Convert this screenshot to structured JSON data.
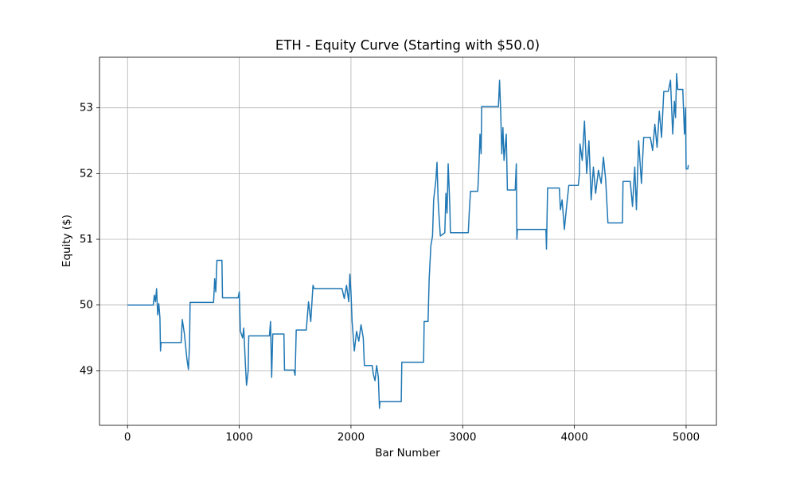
{
  "chart_data": {
    "type": "line",
    "title": "ETH - Equity Curve (Starting with $50.0)",
    "x_label": "Bar Number",
    "y_label": "Equity ($)",
    "color": "#1f77b4",
    "grid": true,
    "xlim": [
      -251,
      5271
    ],
    "ylim": [
      48.17,
      53.77
    ],
    "xticks": [
      0,
      1000,
      2000,
      3000,
      4000,
      5000
    ],
    "yticks": [
      49,
      50,
      51,
      52,
      53
    ],
    "x": [
      0,
      230,
      240,
      250,
      260,
      270,
      280,
      290,
      295,
      300,
      480,
      490,
      510,
      530,
      545,
      555,
      560,
      770,
      780,
      790,
      800,
      845,
      850,
      990,
      1000,
      1010,
      1030,
      1040,
      1055,
      1065,
      1080,
      1085,
      1270,
      1280,
      1290,
      1300,
      1400,
      1405,
      1490,
      1500,
      1510,
      1600,
      1620,
      1640,
      1660,
      1670,
      1920,
      1940,
      1960,
      1980,
      1990,
      2000,
      2010,
      2030,
      2050,
      2070,
      2090,
      2110,
      2120,
      2190,
      2200,
      2215,
      2230,
      2245,
      2255,
      2260,
      2450,
      2455,
      2650,
      2655,
      2690,
      2700,
      2715,
      2730,
      2740,
      2760,
      2770,
      2780,
      2790,
      2800,
      2840,
      2850,
      2860,
      2870,
      2885,
      2890,
      3050,
      3060,
      3070,
      3135,
      3145,
      3155,
      3165,
      3170,
      3320,
      3330,
      3340,
      3350,
      3360,
      3370,
      3390,
      3400,
      3470,
      3480,
      3485,
      3490,
      3745,
      3750,
      3760,
      3865,
      3875,
      3890,
      3910,
      3930,
      3950,
      4035,
      4045,
      4050,
      4070,
      4090,
      4110,
      4130,
      4150,
      4170,
      4190,
      4215,
      4240,
      4260,
      4280,
      4300,
      4430,
      4435,
      4500,
      4520,
      4540,
      4555,
      4575,
      4600,
      4620,
      4680,
      4700,
      4720,
      4740,
      4760,
      4780,
      4800,
      4840,
      4860,
      4880,
      4895,
      4905,
      4915,
      4925,
      4970,
      4985,
      4995,
      5000,
      5015,
      5020
    ],
    "values": [
      50,
      50,
      50.15,
      50.05,
      50.25,
      49.85,
      50.02,
      49.8,
      49.3,
      49.43,
      49.43,
      49.78,
      49.55,
      49.2,
      49.02,
      49.4,
      50.04,
      50.04,
      50.4,
      50.2,
      50.68,
      50.68,
      50.11,
      50.11,
      50.2,
      49.6,
      49.5,
      49.65,
      49.1,
      48.78,
      49.0,
      49.53,
      49.53,
      49.75,
      48.9,
      49.56,
      49.56,
      49.01,
      49.01,
      48.93,
      49.62,
      49.62,
      50.05,
      49.75,
      50.3,
      50.25,
      50.25,
      50.1,
      50.3,
      50.05,
      50.47,
      50.2,
      49.75,
      49.3,
      49.6,
      49.45,
      49.7,
      49.5,
      49.08,
      49.08,
      48.95,
      48.85,
      49.08,
      48.9,
      48.43,
      48.53,
      48.53,
      49.13,
      49.13,
      49.75,
      49.75,
      50.4,
      50.9,
      51.05,
      51.6,
      51.9,
      52.17,
      51.6,
      51.3,
      51.05,
      51.1,
      51.7,
      51.4,
      52.15,
      51.5,
      51.1,
      51.1,
      51.45,
      51.73,
      51.73,
      52.1,
      52.6,
      52.3,
      53.02,
      53.02,
      53.42,
      52.95,
      52.3,
      52.7,
      52.2,
      52.6,
      51.75,
      51.75,
      52.15,
      51.0,
      51.15,
      51.15,
      50.85,
      51.78,
      51.78,
      51.45,
      51.6,
      51.15,
      51.5,
      51.82,
      51.82,
      52.0,
      52.45,
      52.2,
      52.8,
      52.0,
      52.5,
      51.6,
      52.1,
      51.7,
      52.05,
      51.85,
      52.25,
      51.9,
      51.25,
      51.25,
      51.88,
      51.88,
      51.5,
      52.1,
      51.45,
      52.5,
      51.85,
      52.55,
      52.55,
      52.35,
      52.75,
      52.4,
      52.95,
      52.55,
      53.25,
      53.25,
      53.42,
      52.6,
      53.1,
      52.85,
      53.52,
      53.28,
      53.28,
      52.6,
      53.0,
      52.07,
      52.07,
      52.13
    ]
  }
}
